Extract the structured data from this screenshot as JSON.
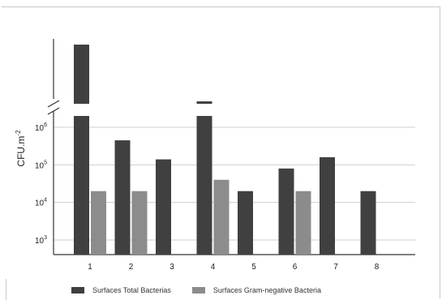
{
  "chart_data": {
    "type": "bar",
    "title": "",
    "xlabel": "",
    "ylabel": "CFU.m",
    "ylabel_superscript": "-2",
    "categories": [
      "1",
      "2",
      "3",
      "4",
      "5",
      "6",
      "7",
      "8"
    ],
    "yscale": "log",
    "ylim": [
      1000,
      1000000
    ],
    "yticks": [
      {
        "base": "10",
        "exp": "3",
        "value": 1000
      },
      {
        "base": "10",
        "exp": "4",
        "value": 10000
      },
      {
        "base": "10",
        "exp": "5",
        "value": 100000
      },
      {
        "base": "10",
        "exp": "6",
        "value": 1000000
      }
    ],
    "axis_break": true,
    "grid": "horizontal",
    "legend_position": "bottom",
    "series": [
      {
        "name": "Surfaces Total Bacterias",
        "color": "#404040",
        "values": [
          2000000,
          450000,
          140000,
          2000000,
          20000,
          80000,
          160000,
          20000
        ],
        "above_break": [
          true,
          false,
          false,
          true,
          false,
          false,
          false,
          false
        ]
      },
      {
        "name": "Surfaces Gram-negative Bacteria",
        "color": "#8c8c8c",
        "values": [
          20000,
          20000,
          null,
          40000,
          null,
          20000,
          null,
          null
        ],
        "above_break": [
          false,
          false,
          false,
          false,
          false,
          false,
          false,
          false
        ]
      }
    ]
  }
}
